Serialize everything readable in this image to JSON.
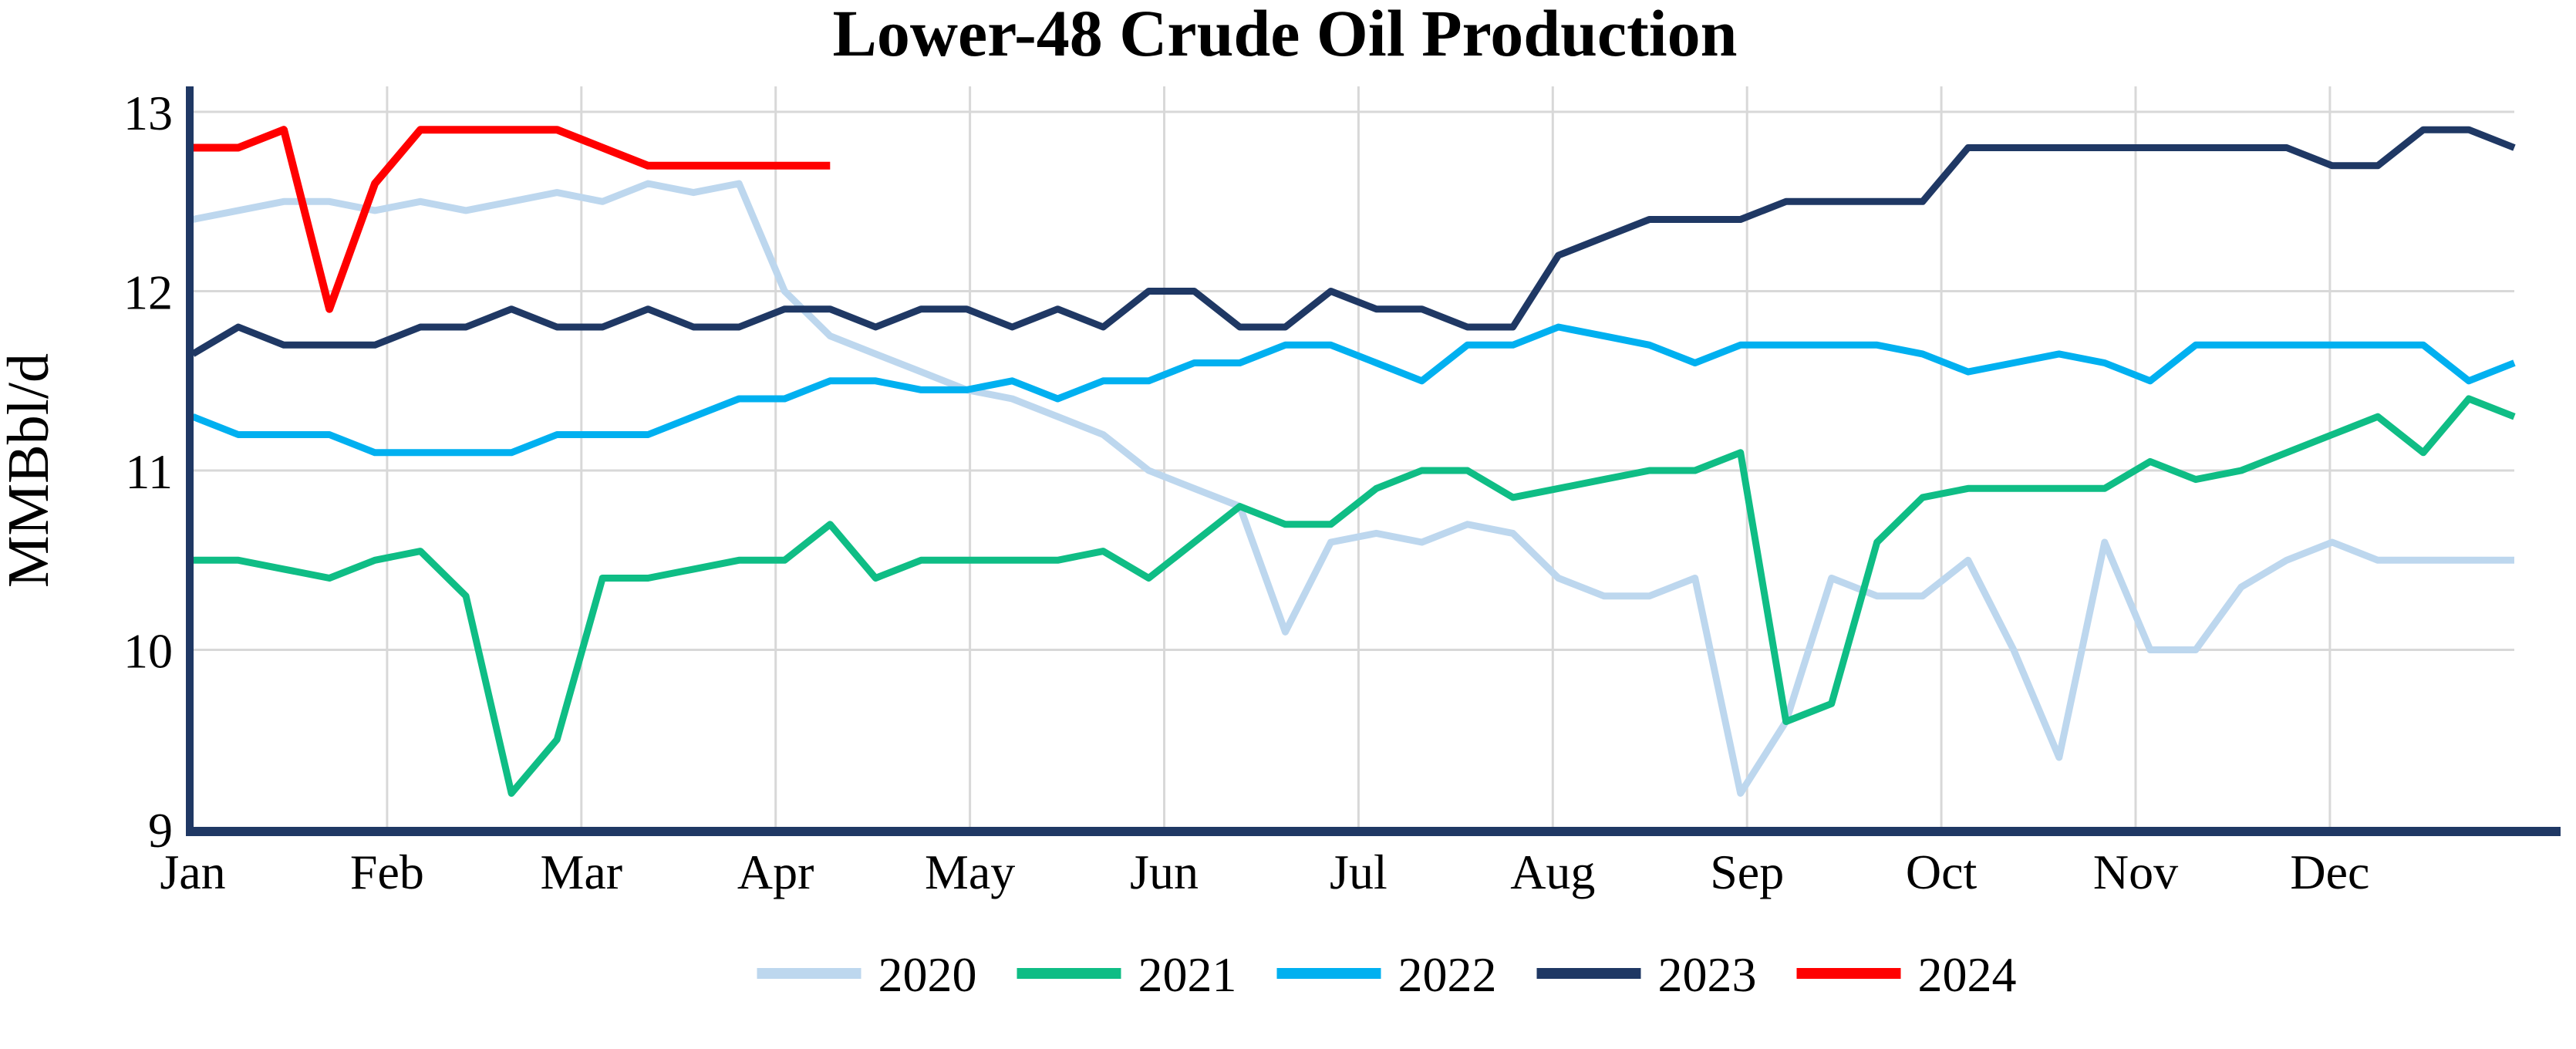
{
  "title": "Lower-48 Crude Oil Production",
  "chart_data": {
    "type": "line",
    "title": "Lower-48 Crude Oil Production",
    "xlabel": "",
    "ylabel": "MMBbl/d",
    "x_unit": "week of year (1-52), plotted Jan through Dec",
    "x_tick_labels": [
      "Jan",
      "Feb",
      "Mar",
      "Apr",
      "May",
      "Jun",
      "Jul",
      "Aug",
      "Sep",
      "Oct",
      "Nov",
      "Dec"
    ],
    "y_ticks": [
      13,
      12,
      11,
      10,
      9
    ],
    "ylim": [
      9,
      13
    ],
    "grid": true,
    "legend_position": "bottom-center",
    "series": [
      {
        "name": "2020",
        "color": "#BDD7EE",
        "width": 9,
        "values": [
          12.4,
          12.45,
          12.5,
          12.5,
          12.45,
          12.5,
          12.45,
          12.5,
          12.55,
          12.5,
          12.6,
          12.55,
          12.6,
          12.0,
          11.75,
          11.65,
          11.55,
          11.45,
          11.4,
          11.3,
          11.2,
          11.0,
          10.9,
          10.8,
          10.1,
          10.6,
          10.65,
          10.6,
          10.7,
          10.65,
          10.4,
          10.3,
          10.3,
          10.4,
          9.2,
          9.6,
          10.4,
          10.3,
          10.3,
          10.5,
          10.0,
          9.4,
          10.6,
          10.0,
          10.0,
          10.35,
          10.5,
          10.6,
          10.5,
          10.5,
          10.5,
          10.5
        ]
      },
      {
        "name": "2021",
        "color": "#0FBD85",
        "width": 9,
        "values": [
          10.5,
          10.5,
          10.45,
          10.4,
          10.5,
          10.55,
          10.3,
          9.2,
          9.5,
          10.4,
          10.4,
          10.45,
          10.5,
          10.5,
          10.7,
          10.4,
          10.5,
          10.5,
          10.5,
          10.5,
          10.55,
          10.4,
          10.6,
          10.8,
          10.7,
          10.7,
          10.9,
          11.0,
          11.0,
          10.85,
          10.9,
          10.95,
          11.0,
          11.0,
          11.1,
          9.6,
          9.7,
          10.6,
          10.85,
          10.9,
          10.9,
          10.9,
          10.9,
          11.05,
          10.95,
          11.0,
          11.1,
          11.2,
          11.3,
          11.1,
          11.4,
          11.3
        ]
      },
      {
        "name": "2022",
        "color": "#00B0F0",
        "width": 9,
        "values": [
          11.3,
          11.2,
          11.2,
          11.2,
          11.1,
          11.1,
          11.1,
          11.1,
          11.2,
          11.2,
          11.2,
          11.3,
          11.4,
          11.4,
          11.5,
          11.5,
          11.45,
          11.45,
          11.5,
          11.4,
          11.5,
          11.5,
          11.6,
          11.6,
          11.7,
          11.7,
          11.6,
          11.5,
          11.7,
          11.7,
          11.8,
          11.75,
          11.7,
          11.6,
          11.7,
          11.7,
          11.7,
          11.7,
          11.65,
          11.55,
          11.6,
          11.65,
          11.6,
          11.5,
          11.7,
          11.7,
          11.7,
          11.7,
          11.7,
          11.7,
          11.5,
          11.6
        ]
      },
      {
        "name": "2023",
        "color": "#1F3864",
        "width": 9,
        "values": [
          11.65,
          11.8,
          11.7,
          11.7,
          11.7,
          11.8,
          11.8,
          11.9,
          11.8,
          11.8,
          11.9,
          11.8,
          11.8,
          11.9,
          11.9,
          11.8,
          11.9,
          11.9,
          11.8,
          11.9,
          11.8,
          12.0,
          12.0,
          11.8,
          11.8,
          12.0,
          11.9,
          11.9,
          11.8,
          11.8,
          12.2,
          12.3,
          12.4,
          12.4,
          12.4,
          12.5,
          12.5,
          12.5,
          12.5,
          12.8,
          12.8,
          12.8,
          12.8,
          12.8,
          12.8,
          12.8,
          12.8,
          12.7,
          12.7,
          12.9,
          12.9,
          12.8
        ]
      },
      {
        "name": "2024",
        "color": "#FF0000",
        "width": 10,
        "values": [
          12.8,
          12.8,
          12.9,
          11.9,
          12.6,
          12.9,
          12.9,
          12.9,
          12.9,
          12.8,
          12.7,
          12.7,
          12.7,
          12.7,
          12.7
        ]
      }
    ]
  },
  "colors": {
    "axis": "#1F3864",
    "grid": "#D8D8D8",
    "text": "#000000",
    "background": "#FFFFFF"
  }
}
